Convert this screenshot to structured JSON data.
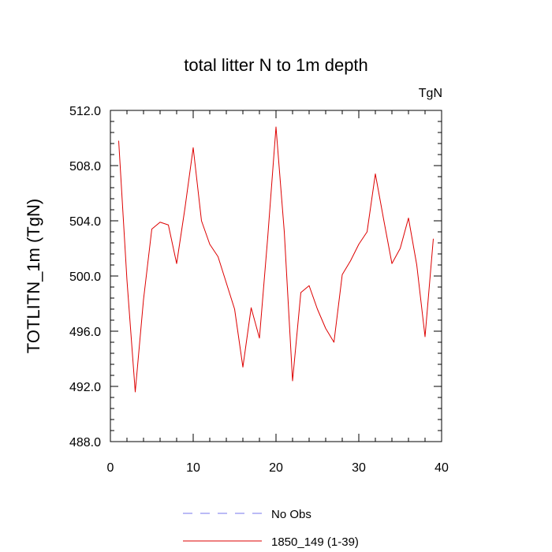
{
  "chart_data": {
    "type": "line",
    "title": "total litter N to 1m depth",
    "units_label": "TgN",
    "xlabel": "",
    "ylabel": "TOTLITN_1m  (TgN)",
    "xlim": [
      0,
      40
    ],
    "ylim": [
      488,
      512
    ],
    "xticks": [
      0,
      10,
      20,
      30,
      40
    ],
    "xtick_labels": [
      "0",
      "10",
      "20",
      "30",
      "40"
    ],
    "yticks": [
      488,
      492,
      496,
      500,
      504,
      508,
      512
    ],
    "ytick_labels": [
      "488.0",
      "492.0",
      "496.0",
      "500.0",
      "504.0",
      "508.0",
      "512.0"
    ],
    "grid": false,
    "legend_position": "bottom-center",
    "series": [
      {
        "name": "No Obs",
        "color": "#7777ee",
        "style": "dashed",
        "x": [],
        "values": []
      },
      {
        "name": "1850_149 (1-39)",
        "color": "#dd0000",
        "style": "solid",
        "x": [
          1,
          2,
          3,
          4,
          5,
          6,
          7,
          8,
          9,
          10,
          11,
          12,
          13,
          14,
          15,
          16,
          17,
          18,
          19,
          20,
          21,
          22,
          23,
          24,
          25,
          26,
          27,
          28,
          29,
          30,
          31,
          32,
          33,
          34,
          35,
          36,
          37,
          38,
          39
        ],
        "values": [
          509.8,
          499.7,
          491.6,
          498.3,
          503.4,
          503.9,
          503.7,
          500.9,
          504.9,
          509.3,
          504.0,
          502.3,
          501.4,
          499.5,
          497.6,
          493.4,
          497.7,
          495.5,
          502.8,
          510.8,
          503.2,
          492.4,
          498.8,
          499.3,
          497.6,
          496.2,
          495.2,
          500.1,
          501.1,
          502.3,
          503.2,
          507.4,
          504.1,
          500.9,
          502.0,
          504.2,
          500.8,
          495.6,
          502.7
        ]
      }
    ]
  }
}
